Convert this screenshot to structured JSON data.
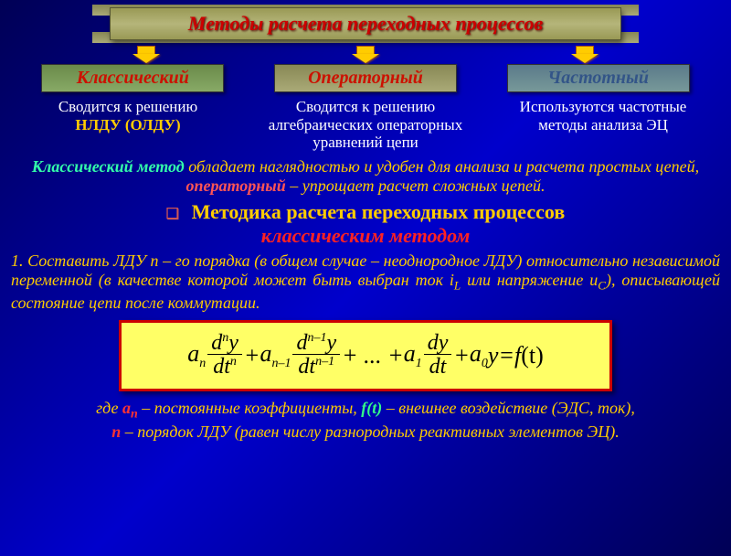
{
  "title": "Методы расчета переходных процессов",
  "methods": [
    {
      "label": "Классический",
      "class": "m1"
    },
    {
      "label": "Операторный",
      "class": "m2"
    },
    {
      "label": "Частотный",
      "class": "m3"
    }
  ],
  "descriptions": [
    {
      "pre": "Сводится к решению",
      "hl": "НЛДУ (ОЛДУ)",
      "post": ""
    },
    {
      "pre": "Сводится к решению алгебраических операторных уравнений цепи",
      "hl": "",
      "post": ""
    },
    {
      "pre": "Используются частотные методы анализа ЭЦ",
      "hl": "",
      "post": ""
    }
  ],
  "note": {
    "t1": "Классический метод",
    "mid1": " обладает наглядностью и удобен для анализа и расчета простых цепей, ",
    "t2": "операторный",
    "mid2": " – упрощает расчет сложных цепей."
  },
  "section": {
    "line1": "Методика расчета переходных процессов",
    "line2": "классическим методом"
  },
  "step1": {
    "a": "1. Составить ЛДУ  n – го порядка",
    "b": " (в общем случае – неоднородное ЛДУ) относительно независимой переменной (",
    "c": "в качестве  которой может быть выбран ток i",
    "csub": "L",
    "d": " или напряжение u",
    "dsub": "C",
    "e": "), описывающей состояние цепи после коммутации."
  },
  "formula": {
    "a_n": "a",
    "n": "n",
    "dn_num": "d",
    "dn_num_sup": "n",
    "dn_num_y": "y",
    "dn_den": "dt",
    "dn_den_sup": "n",
    "a_n1": "a",
    "n1": "n–1",
    "dn1_num_sup": "n–1",
    "dots": "+ ... +",
    "a1": "a",
    "one": "1",
    "d1_num": "dy",
    "d1_den": "dt",
    "a0": "a",
    "zero": "0",
    "y": "y",
    "eq": " = ",
    "f": "f",
    "t": "(t)",
    "plus": " + "
  },
  "footer": {
    "pre": "где ",
    "an": "a",
    "ansub": "n",
    "mid1": " – постоянные коэффициенты, ",
    "ft": "f(t)",
    "mid2": " – внешнее воздействие (ЭДС, ток),",
    "n": "n",
    "mid3": " – порядок ЛДУ (",
    "ital": "равен числу разнородных реактивных элементов ЭЦ",
    "end": ")."
  },
  "colors": {
    "bg_start": "#000055",
    "bg_mid": "#0000cc",
    "title_text": "#cc0000",
    "yellow": "#ffcc00",
    "formula_bg": "#ffff66",
    "formula_border": "#cc0000"
  }
}
